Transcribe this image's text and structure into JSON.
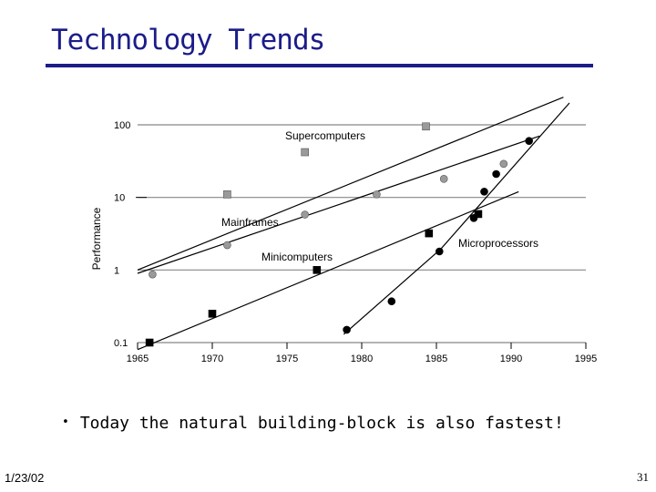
{
  "slide": {
    "title": "Technology Trends",
    "bullet": "Today the natural building-block is also fastest!",
    "date": "1/23/02",
    "page": "31"
  },
  "colors": {
    "title": "#1c1c8a",
    "gridline": "#888888",
    "gray_marker": "#9a9a9a",
    "black_marker": "#000000"
  },
  "chart_data": {
    "type": "scatter",
    "ylabel": "Performance",
    "xlabel": "",
    "x_ticks": [
      1965,
      1970,
      1975,
      1980,
      1985,
      1990,
      1995
    ],
    "y_ticks": [
      0.1,
      1,
      10,
      100
    ],
    "y_tick_labels": [
      "0.1",
      "1",
      "10",
      "100"
    ],
    "xlim": [
      1965,
      1995
    ],
    "ylim": [
      0.1,
      100
    ],
    "y_scale": "log",
    "grid": "horizontal at 0.1, 1, 10, 100",
    "series": [
      {
        "name": "Supercomputers",
        "marker": "gray-square",
        "points": [
          [
            1971,
            11
          ],
          [
            1976.2,
            42
          ],
          [
            1984.3,
            95
          ]
        ],
        "trend": [
          [
            1965,
            1.0
          ],
          [
            1993.5,
            240
          ]
        ]
      },
      {
        "name": "Mainframes",
        "marker": "gray-circle",
        "points": [
          [
            1966,
            0.87
          ],
          [
            1971,
            2.2
          ],
          [
            1976.2,
            5.8
          ],
          [
            1981,
            11
          ],
          [
            1985.5,
            18
          ],
          [
            1989.5,
            29
          ]
        ],
        "trend": [
          [
            1965,
            0.9
          ],
          [
            1991.9,
            70
          ]
        ]
      },
      {
        "name": "Minicomputers",
        "marker": "black-square",
        "points": [
          [
            1965.8,
            0.1
          ],
          [
            1970,
            0.25
          ],
          [
            1977,
            1.0
          ],
          [
            1984.5,
            3.2
          ],
          [
            1987.8,
            5.9
          ]
        ],
        "trend": [
          [
            1965,
            0.08
          ],
          [
            1990.5,
            12
          ]
        ]
      },
      {
        "name": "Microprocessors",
        "marker": "black-circle",
        "points": [
          [
            1979,
            0.15
          ],
          [
            1982,
            0.37
          ],
          [
            1985.2,
            1.8
          ],
          [
            1987.5,
            5.2
          ],
          [
            1988.2,
            12
          ],
          [
            1989,
            21
          ],
          [
            1991.2,
            60
          ]
        ],
        "trend": [
          [
            1978.8,
            0.13
          ],
          [
            1985.3,
            1.95
          ],
          [
            1993.9,
            200
          ]
        ]
      }
    ]
  }
}
